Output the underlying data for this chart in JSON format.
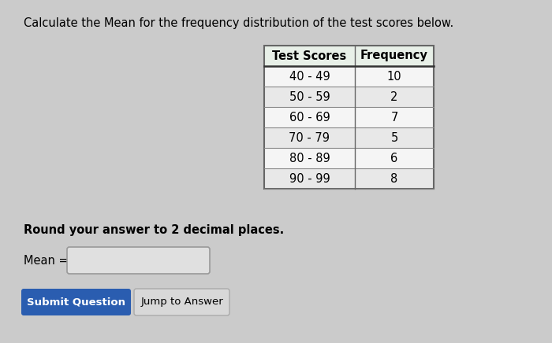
{
  "title": "Calculate the Mean for the frequency distribution of the test scores below.",
  "table_headers": [
    "Test Scores",
    "Frequency"
  ],
  "table_rows": [
    [
      "40 - 49",
      "10"
    ],
    [
      "50 - 59",
      "2"
    ],
    [
      "60 - 69",
      "7"
    ],
    [
      "70 - 79",
      "5"
    ],
    [
      "80 - 89",
      "6"
    ],
    [
      "90 - 99",
      "8"
    ]
  ],
  "round_note": "Round your answer to 2 decimal places.",
  "mean_label": "Mean =",
  "btn1_text": "Submit Question",
  "btn2_text": "Jump to Answer",
  "bg_color": "#cbcbcb",
  "table_bg": "#ffffff",
  "header_bg": "#e8f0e8",
  "row_alt_bg": "#e8e8e8",
  "row_bg": "#f5f5f5",
  "input_box_color": "#e0e0e0",
  "btn1_color": "#2a5db0",
  "btn2_color": "#d8d8d8",
  "btn1_text_color": "#ffffff",
  "btn2_text_color": "#000000",
  "title_fontsize": 10.5,
  "table_header_fontsize": 10.5,
  "table_fontsize": 10.5,
  "note_fontsize": 10.5,
  "mean_fontsize": 10.5,
  "btn_fontsize": 9.5,
  "fig_width": 7.0,
  "fig_height": 4.36,
  "dpi": 100
}
